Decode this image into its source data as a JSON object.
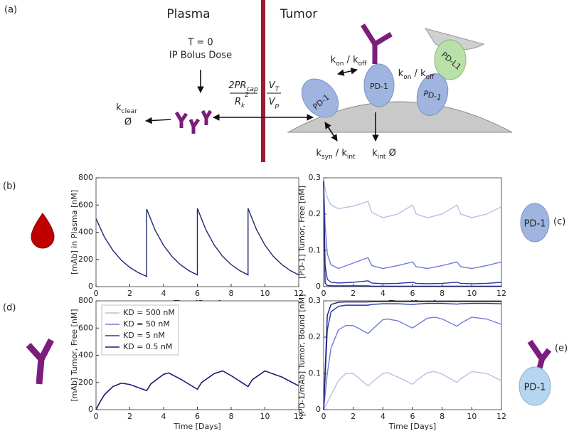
{
  "diagram": {
    "panel": "(a)",
    "plasma": "Plasma",
    "tumor": "Tumor",
    "t0": "T = 0",
    "dose": "IP Bolus Dose",
    "kclear": [
      "k",
      "clear"
    ],
    "empty1": "Ø",
    "num1": [
      "2PR",
      "cap"
    ],
    "den1": [
      "R",
      "k"
    ],
    "den1_sup": "2",
    "num2": [
      "V",
      "T"
    ],
    "den2": [
      "V",
      "p"
    ],
    "kon1": [
      "k",
      "on",
      " / k",
      "off"
    ],
    "kon2": [
      "k",
      "on",
      " / k",
      "off"
    ],
    "pd1a": "PD-1",
    "pd1b": "PD-1",
    "pd1c": "PD-1",
    "pdl1": "PD-L1",
    "ksyn": [
      "k",
      "syn",
      " / k",
      "int"
    ],
    "kint": [
      "k",
      "int",
      " Ø"
    ]
  },
  "chart_data": [
    {
      "type": "line",
      "panel": "(b)",
      "xlabel": "Time [Days]",
      "ylabel": "[mAb] in Plasma [nM]",
      "xlim": [
        0,
        12
      ],
      "xticks": [
        0,
        2,
        4,
        6,
        8,
        10,
        12
      ],
      "ylim": [
        0,
        800
      ],
      "yticks": [
        0,
        200,
        400,
        600,
        800
      ],
      "legend": false,
      "x": [
        0,
        0.5,
        1,
        1.5,
        2,
        2.5,
        3,
        3,
        3.5,
        4,
        4.5,
        5,
        5.5,
        6,
        6,
        6.5,
        7,
        7.5,
        8,
        8.5,
        9,
        9,
        9.5,
        10,
        10.5,
        11,
        11.5,
        12
      ],
      "series": [
        {
          "color": "#1f2470",
          "values": [
            500,
            364,
            266,
            194,
            141,
            103,
            75,
            570,
            415,
            303,
            221,
            161,
            117,
            86,
            575,
            419,
            305,
            222,
            162,
            118,
            86,
            575,
            419,
            305,
            222,
            162,
            118,
            86
          ]
        }
      ]
    },
    {
      "type": "line",
      "panel": "(c)",
      "icon_text": "PD-1",
      "xlabel": "Time [Days]",
      "ylabel": "[PD-1] Tumor, Free [nM]",
      "xlim": [
        0,
        12
      ],
      "xticks": [
        0,
        2,
        4,
        6,
        8,
        10,
        12
      ],
      "ylim": [
        0,
        0.3
      ],
      "yticks": [
        0,
        0.1,
        0.2,
        0.3
      ],
      "legend": false,
      "x": [
        0,
        0.1,
        0.25,
        0.5,
        1,
        2,
        3,
        3.25,
        4,
        5,
        6,
        6.25,
        7,
        8,
        9,
        9.25,
        10,
        11,
        12
      ],
      "series": [
        {
          "color": "#b8bfe6",
          "values": [
            0.29,
            0.27,
            0.245,
            0.225,
            0.215,
            0.222,
            0.235,
            0.205,
            0.19,
            0.2,
            0.225,
            0.2,
            0.19,
            0.2,
            0.225,
            0.2,
            0.19,
            0.2,
            0.22
          ]
        },
        {
          "color": "#6f7bd8",
          "values": [
            0.29,
            0.17,
            0.09,
            0.06,
            0.05,
            0.065,
            0.08,
            0.058,
            0.05,
            0.058,
            0.068,
            0.055,
            0.05,
            0.058,
            0.068,
            0.055,
            0.05,
            0.058,
            0.068
          ]
        },
        {
          "color": "#2b35b0",
          "values": [
            0.29,
            0.06,
            0.02,
            0.012,
            0.01,
            0.012,
            0.016,
            0.01,
            0.008,
            0.009,
            0.012,
            0.009,
            0.008,
            0.009,
            0.012,
            0.009,
            0.008,
            0.009,
            0.012
          ]
        },
        {
          "color": "#1b1f6b",
          "values": [
            0.29,
            0.01,
            0.003,
            0.002,
            0.002,
            0.002,
            0.002,
            0.001,
            0.001,
            0.001,
            0.001,
            0.001,
            0.001,
            0.001,
            0.001,
            0.001,
            0.001,
            0.001,
            0.001
          ]
        }
      ]
    },
    {
      "type": "line",
      "panel": "(d)",
      "xlabel": "Time [Days]",
      "ylabel": "[mAb] Tumor, Free [nM]",
      "xlim": [
        0,
        12
      ],
      "xticks": [
        0,
        2,
        4,
        6,
        8,
        10,
        12
      ],
      "ylim": [
        0,
        800
      ],
      "yticks": [
        0,
        200,
        400,
        600,
        800
      ],
      "legend": true,
      "x": [
        0,
        0.25,
        0.5,
        1,
        1.5,
        2,
        3,
        3.25,
        4,
        4.3,
        5,
        6,
        6.25,
        7,
        7.5,
        8,
        9,
        9.25,
        10,
        11,
        12
      ],
      "series": [
        {
          "name": "KD = 500 nM",
          "color": "#b8bfe6",
          "values": [
            0,
            60,
            110,
            170,
            195,
            185,
            140,
            190,
            260,
            270,
            225,
            150,
            200,
            265,
            285,
            250,
            170,
            220,
            285,
            240,
            175
          ]
        },
        {
          "name": "KD = 50 nM",
          "color": "#6f7bd8",
          "values": [
            0,
            60,
            110,
            170,
            195,
            185,
            140,
            190,
            260,
            270,
            225,
            150,
            200,
            265,
            285,
            250,
            170,
            220,
            285,
            240,
            175
          ]
        },
        {
          "name": "KD = 5 nM",
          "color": "#2b35b0",
          "values": [
            0,
            60,
            110,
            170,
            195,
            185,
            140,
            190,
            260,
            270,
            225,
            150,
            200,
            265,
            285,
            250,
            170,
            220,
            285,
            240,
            175
          ]
        },
        {
          "name": "KD = 0.5 nM",
          "color": "#1b1f6b",
          "values": [
            0,
            60,
            110,
            170,
            195,
            185,
            140,
            190,
            260,
            270,
            225,
            150,
            200,
            265,
            285,
            250,
            170,
            220,
            285,
            240,
            175
          ]
        }
      ]
    },
    {
      "type": "line",
      "panel": "(e)",
      "icon_text": "PD-1",
      "xlabel": "Time [Days]",
      "ylabel": "[PD-1/mAb] Tumor, Bound [nM]",
      "xlim": [
        0,
        12
      ],
      "xticks": [
        0,
        2,
        4,
        6,
        8,
        10,
        12
      ],
      "ylim": [
        0,
        0.3
      ],
      "yticks": [
        0,
        0.1,
        0.2,
        0.3
      ],
      "legend": false,
      "x": [
        0,
        0.25,
        0.5,
        1,
        1.5,
        2,
        3,
        3.25,
        4,
        4.3,
        5,
        6,
        6.25,
        7,
        7.5,
        8,
        9,
        9.25,
        10,
        11,
        12
      ],
      "series": [
        {
          "color": "#b8bfe6",
          "values": [
            0,
            0.02,
            0.04,
            0.08,
            0.1,
            0.1,
            0.065,
            0.075,
            0.1,
            0.102,
            0.09,
            0.07,
            0.08,
            0.102,
            0.105,
            0.098,
            0.075,
            0.085,
            0.105,
            0.1,
            0.08
          ]
        },
        {
          "color": "#6f7bd8",
          "values": [
            0,
            0.1,
            0.17,
            0.22,
            0.232,
            0.232,
            0.21,
            0.22,
            0.248,
            0.25,
            0.245,
            0.225,
            0.232,
            0.252,
            0.255,
            0.25,
            0.23,
            0.238,
            0.255,
            0.25,
            0.235
          ]
        },
        {
          "color": "#2b35b0",
          "values": [
            0,
            0.22,
            0.27,
            0.285,
            0.288,
            0.288,
            0.288,
            0.29,
            0.292,
            0.292,
            0.292,
            0.29,
            0.291,
            0.293,
            0.293,
            0.293,
            0.291,
            0.292,
            0.293,
            0.293,
            0.292
          ]
        },
        {
          "color": "#1b1f6b",
          "values": [
            0,
            0.26,
            0.29,
            0.296,
            0.297,
            0.297,
            0.297,
            0.298,
            0.298,
            0.298,
            0.298,
            0.298,
            0.298,
            0.298,
            0.298,
            0.298,
            0.298,
            0.298,
            0.298,
            0.298,
            0.298
          ]
        }
      ]
    }
  ]
}
